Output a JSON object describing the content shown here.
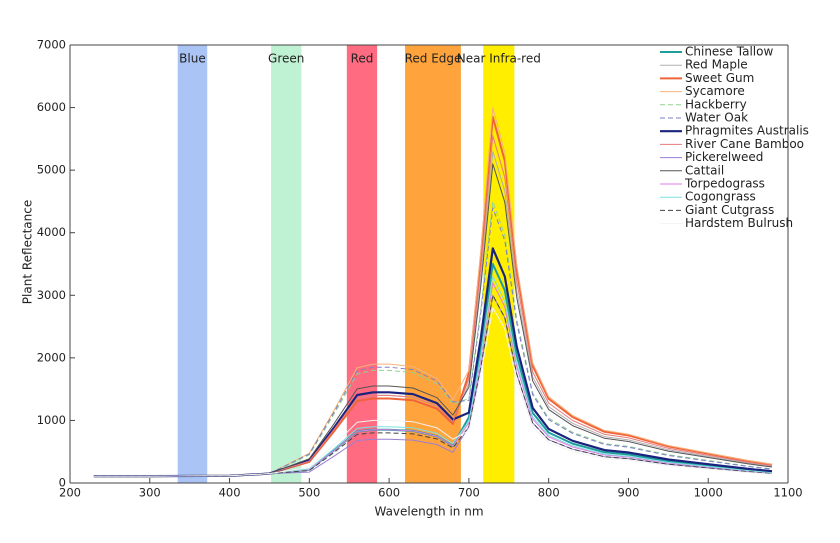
{
  "chart_data": {
    "type": "line",
    "xlabel": "Wavelength in nm",
    "ylabel": "Plant Reflectance",
    "xlim": [
      200,
      1100
    ],
    "ylim": [
      0,
      7000
    ],
    "xticks": [
      200,
      300,
      400,
      500,
      600,
      700,
      800,
      900,
      1000,
      1100
    ],
    "yticks": [
      0,
      1000,
      2000,
      3000,
      4000,
      5000,
      6000,
      7000
    ],
    "legend": "upper right",
    "bands": [
      {
        "label": "Blue",
        "start": 335,
        "end": 372,
        "color": "#a9c4f5"
      },
      {
        "label": "Green",
        "start": 452,
        "end": 490,
        "color": "#bff2d3"
      },
      {
        "label": "Red",
        "start": 547,
        "end": 585,
        "color": "#ff6b80"
      },
      {
        "label": "Red Edge",
        "start": 620,
        "end": 690,
        "color": "#ffa43c"
      },
      {
        "label": "Near Infra-red",
        "start": 718,
        "end": 757,
        "color": "#ffee00"
      }
    ],
    "x": [
      230,
      300,
      400,
      450,
      500,
      530,
      560,
      580,
      600,
      630,
      660,
      680,
      700,
      715,
      730,
      745,
      760,
      780,
      800,
      830,
      870,
      900,
      950,
      1000,
      1050,
      1080
    ],
    "series": [
      {
        "name": "Chinese Tallow",
        "color": "#1f9e9e",
        "width": 2,
        "dash": false,
        "values": [
          110,
          110,
          115,
          150,
          213,
          510,
          825,
          850,
          850,
          833,
          748,
          595,
          1050,
          2170,
          3500,
          3080,
          2030,
          1120,
          805,
          630,
          490,
          455,
          350,
          280,
          210,
          175
        ]
      },
      {
        "name": "Red Maple",
        "color": "#b0b0b0",
        "width": 1,
        "dash": false,
        "values": [
          110,
          110,
          115,
          150,
          350,
          840,
          1358,
          1400,
          1400,
          1372,
          1232,
          980,
          1590,
          3286,
          5300,
          4664,
          3074,
          1696,
          1219,
          954,
          742,
          689,
          530,
          424,
          318,
          265
        ]
      },
      {
        "name": "Sweet Gum",
        "color": "#f0643a",
        "width": 2,
        "dash": false,
        "values": [
          110,
          110,
          115,
          150,
          338,
          810,
          1310,
          1350,
          1350,
          1323,
          1188,
          945,
          1755,
          3627,
          5850,
          5148,
          3393,
          1872,
          1346,
          1053,
          819,
          761,
          585,
          468,
          351,
          293
        ]
      },
      {
        "name": "Sycamore",
        "color": "#f7b27a",
        "width": 1,
        "dash": false,
        "values": [
          110,
          110,
          115,
          150,
          475,
          1140,
          1843,
          1900,
          1900,
          1862,
          1672,
          1330,
          1800,
          3720,
          6000,
          5280,
          3480,
          1920,
          1380,
          1080,
          840,
          780,
          600,
          480,
          360,
          300
        ]
      },
      {
        "name": "Hackberry",
        "color": "#8fd48f",
        "width": 1,
        "dash": true,
        "values": [
          110,
          110,
          115,
          150,
          450,
          1080,
          1746,
          1800,
          1800,
          1764,
          1584,
          1260,
          1350,
          2790,
          4500,
          3960,
          2610,
          1440,
          1035,
          810,
          630,
          585,
          450,
          360,
          270,
          225
        ]
      },
      {
        "name": "Water Oak",
        "color": "#7f7fc8",
        "width": 1,
        "dash": true,
        "values": [
          110,
          110,
          115,
          150,
          463,
          1110,
          1795,
          1850,
          1850,
          1813,
          1628,
          1295,
          1320,
          2728,
          4400,
          3872,
          2552,
          1408,
          1012,
          792,
          616,
          572,
          440,
          352,
          264,
          220
        ]
      },
      {
        "name": "Phragmites Australis",
        "color": "#1a237e",
        "width": 2.2,
        "dash": false,
        "values": [
          110,
          110,
          115,
          150,
          363,
          870,
          1407,
          1450,
          1450,
          1421,
          1276,
          1015,
          1125,
          2325,
          3750,
          3300,
          2175,
          1200,
          863,
          675,
          525,
          488,
          375,
          300,
          225,
          188
        ]
      },
      {
        "name": "River Cane Bamboo",
        "color": "#e87a7a",
        "width": 1,
        "dash": false,
        "values": [
          110,
          110,
          115,
          150,
          350,
          840,
          1358,
          1400,
          1400,
          1372,
          1232,
          980,
          1665,
          3441,
          5550,
          4884,
          3219,
          1776,
          1277,
          999,
          777,
          722,
          555,
          444,
          333,
          278
        ]
      },
      {
        "name": "Pickerelweed",
        "color": "#9a7fd0",
        "width": 1,
        "dash": false,
        "values": [
          110,
          110,
          115,
          150,
          175,
          420,
          679,
          700,
          700,
          686,
          616,
          490,
          900,
          1860,
          3000,
          2640,
          1740,
          960,
          690,
          540,
          420,
          390,
          300,
          240,
          180,
          150
        ]
      },
      {
        "name": "Cattail",
        "color": "#555555",
        "width": 1,
        "dash": false,
        "values": [
          110,
          110,
          115,
          150,
          388,
          930,
          1504,
          1550,
          1550,
          1519,
          1364,
          1085,
          1530,
          3162,
          5100,
          4488,
          2958,
          1632,
          1173,
          918,
          714,
          663,
          510,
          408,
          306,
          255
        ]
      },
      {
        "name": "Torpedograss",
        "color": "#e07be0",
        "width": 1,
        "dash": false,
        "values": [
          110,
          110,
          115,
          150,
          213,
          510,
          825,
          850,
          850,
          833,
          748,
          595,
          960,
          1984,
          3200,
          2816,
          1856,
          1024,
          736,
          576,
          448,
          416,
          320,
          256,
          192,
          160
        ]
      },
      {
        "name": "Cogongrass",
        "color": "#7fe0e0",
        "width": 1,
        "dash": false,
        "values": [
          110,
          110,
          115,
          150,
          225,
          540,
          873,
          900,
          900,
          882,
          792,
          630,
          990,
          2046,
          3300,
          2904,
          1914,
          1056,
          759,
          594,
          462,
          429,
          330,
          264,
          198,
          165
        ]
      },
      {
        "name": "Giant Cutgrass",
        "color": "#444444",
        "width": 1,
        "dash": true,
        "values": [
          110,
          110,
          115,
          150,
          200,
          480,
          776,
          800,
          800,
          784,
          704,
          560,
          900,
          1860,
          3000,
          2640,
          1740,
          960,
          690,
          540,
          420,
          390,
          300,
          240,
          180,
          150
        ]
      },
      {
        "name": "Hardstem Bulrush",
        "color": "#f2f2f2",
        "width": 1,
        "dash": false,
        "values": [
          110,
          110,
          115,
          150,
          250,
          600,
          970,
          1000,
          1000,
          980,
          880,
          700,
          840,
          1736,
          2800,
          2464,
          1624,
          896,
          644,
          504,
          392,
          364,
          280,
          224,
          168,
          140
        ]
      }
    ]
  }
}
